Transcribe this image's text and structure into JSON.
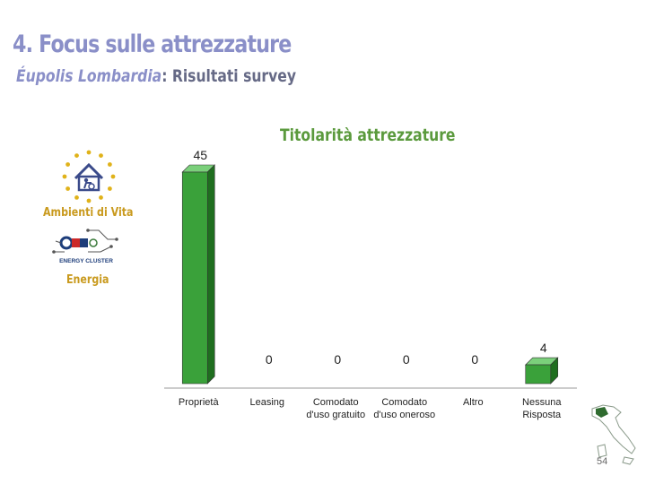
{
  "header": {
    "title": "4. Focus sulle attrezzature",
    "subtitle_brand": "Éupolis Lombardia",
    "subtitle_rest": ": Risultati survey"
  },
  "logos": [
    {
      "name": "ambienti-di-vita-logo",
      "label": "Ambienti di Vita"
    },
    {
      "name": "energy-cluster-logo",
      "label": "Energia",
      "inner_text": "ENERGY CLUSTER"
    }
  ],
  "page_number": "54",
  "colors": {
    "bar": "#3aa13a",
    "bar_side": "#1f6e1f",
    "bar_top": "#7bd07b",
    "title": "#8a8fc8",
    "accent": "#5b9a3d",
    "label": "#c99a1e"
  },
  "chart_data": {
    "type": "bar",
    "title": "Titolarità attrezzature",
    "categories": [
      [
        "Proprietà"
      ],
      [
        "Leasing"
      ],
      [
        "Comodato",
        "d'uso gratuito"
      ],
      [
        "Comodato",
        "d'uso oneroso"
      ],
      [
        "Altro"
      ],
      [
        "Nessuna",
        "Risposta"
      ]
    ],
    "values": [
      45,
      0,
      0,
      0,
      0,
      4
    ],
    "ylim": [
      0,
      45
    ],
    "grid": false,
    "style": "3d"
  }
}
